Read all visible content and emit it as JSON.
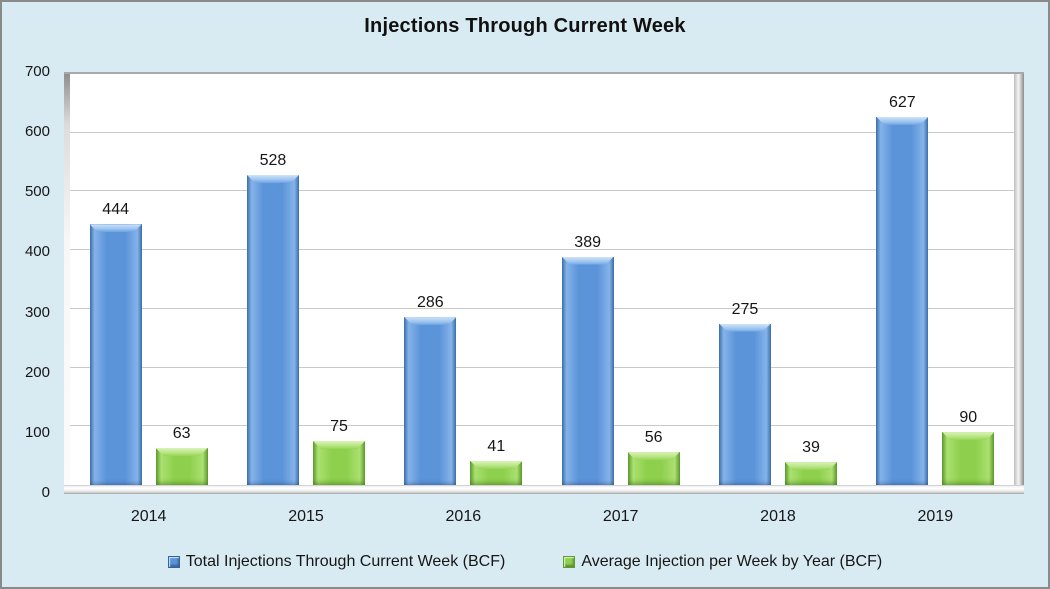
{
  "title": "Injections Through Current Week",
  "chart_data": {
    "type": "bar",
    "title": "Injections Through Current Week",
    "categories": [
      "2014",
      "2015",
      "2016",
      "2017",
      "2018",
      "2019"
    ],
    "series": [
      {
        "name": "Total Injections Through Current Week (BCF)",
        "color": "#5b94d9",
        "values": [
          444,
          528,
          286,
          389,
          275,
          627
        ]
      },
      {
        "name": "Average Injection per Week by Year (BCF)",
        "color": "#8ed04e",
        "values": [
          63,
          75,
          41,
          56,
          39,
          90
        ]
      }
    ],
    "xlabel": "",
    "ylabel": "",
    "ylim": [
      0,
      700
    ],
    "yticks": [
      0,
      100,
      200,
      300,
      400,
      500,
      600,
      700
    ],
    "grid": true,
    "data_labels": true,
    "legend_position": "bottom"
  },
  "colors": {
    "background": "#d9ebf2",
    "plot_background": "#ffffff",
    "gridline": "#c9c9c9",
    "frame_border": "#8a8a8a",
    "text": "#1d1d1d"
  }
}
